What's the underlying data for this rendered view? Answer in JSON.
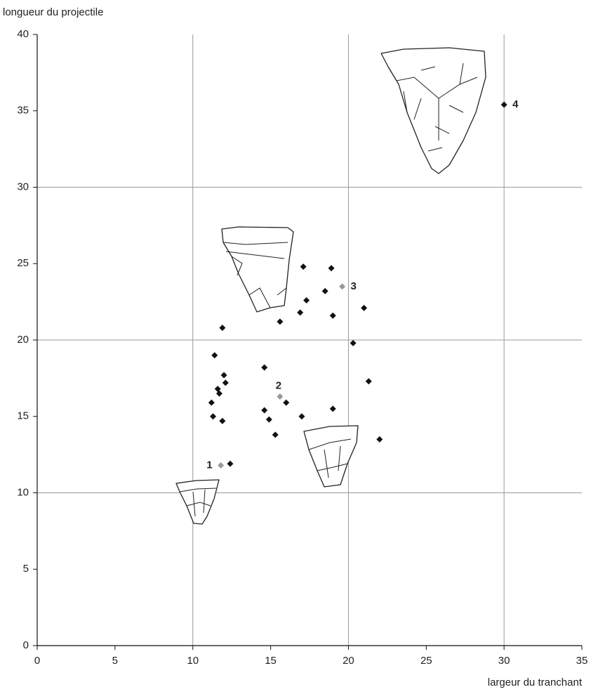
{
  "chart_data": {
    "type": "scatter",
    "x_label": "largeur du tranchant",
    "y_label": "longueur du projectile",
    "xlim": [
      0,
      35
    ],
    "xticks": [
      0,
      5,
      10,
      15,
      20,
      25,
      30,
      35
    ],
    "ylim": [
      0,
      40
    ],
    "yticks": [
      0,
      5,
      10,
      15,
      20,
      25,
      30,
      35,
      40
    ],
    "grid": true,
    "series": [
      {
        "color": "#111111",
        "x": [
          17.1,
          18.9,
          18.5,
          17.3,
          16.9,
          15.6,
          19.0,
          21.0,
          11.9,
          11.4,
          20.3,
          14.6,
          12.0,
          12.1,
          11.6,
          11.7,
          21.3,
          11.2,
          16.0,
          14.6,
          19.0,
          11.3,
          14.9,
          11.9,
          17.0,
          15.3,
          22.0,
          12.4
        ],
        "y": [
          24.8,
          24.7,
          23.2,
          22.6,
          21.8,
          21.2,
          21.6,
          22.1,
          20.8,
          19.0,
          19.8,
          18.2,
          17.7,
          17.2,
          16.8,
          16.5,
          17.3,
          15.9,
          15.9,
          15.4,
          15.5,
          15.0,
          14.8,
          14.7,
          15.0,
          13.8,
          13.5,
          11.9
        ]
      },
      {
        "color": "#999999",
        "x": [
          11.8,
          15.6,
          19.6
        ],
        "y": [
          11.8,
          16.3,
          23.5
        ],
        "labels": [
          "1",
          "2",
          "3"
        ]
      },
      {
        "color": "#111111",
        "x": [
          30.0
        ],
        "y": [
          35.4
        ],
        "labels": [
          "4"
        ]
      }
    ]
  }
}
